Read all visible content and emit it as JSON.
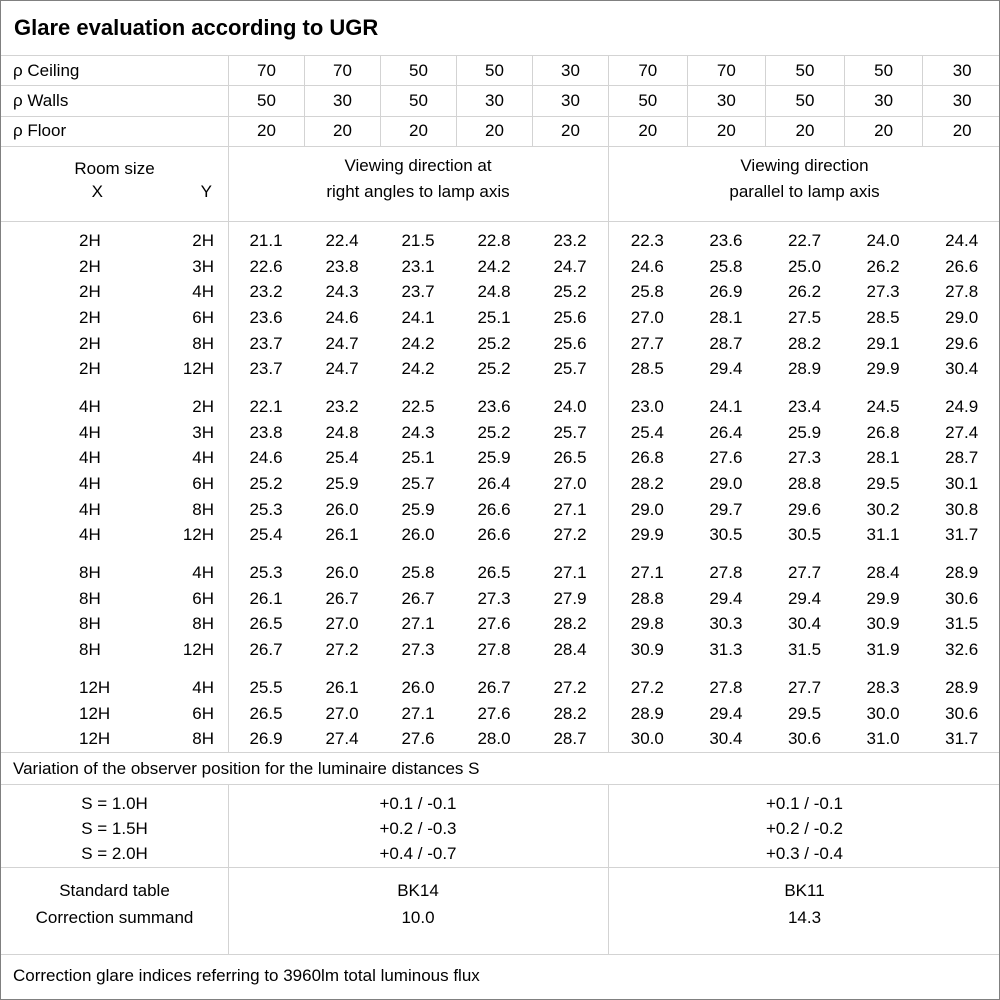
{
  "title": "Glare evaluation according to UGR",
  "reflectances": {
    "rows": [
      {
        "label": "ρ Ceiling",
        "values": [
          "70",
          "70",
          "50",
          "50",
          "30",
          "70",
          "70",
          "50",
          "50",
          "30"
        ]
      },
      {
        "label": "ρ Walls",
        "values": [
          "50",
          "30",
          "50",
          "30",
          "30",
          "50",
          "30",
          "50",
          "30",
          "30"
        ]
      },
      {
        "label": "ρ Floor",
        "values": [
          "20",
          "20",
          "20",
          "20",
          "20",
          "20",
          "20",
          "20",
          "20",
          "20"
        ]
      }
    ]
  },
  "header": {
    "room_size": "Room size",
    "x_label": "X",
    "y_label": "Y",
    "left_heading_line1": "Viewing direction at",
    "left_heading_line2": "right angles to lamp axis",
    "right_heading_line1": "Viewing direction",
    "right_heading_line2": "parallel to lamp axis"
  },
  "blocks": [
    {
      "rows": [
        {
          "x": "2H",
          "y": "2H",
          "left": [
            "21.1",
            "22.4",
            "21.5",
            "22.8",
            "23.2"
          ],
          "right": [
            "22.3",
            "23.6",
            "22.7",
            "24.0",
            "24.4"
          ]
        },
        {
          "x": "2H",
          "y": "3H",
          "left": [
            "22.6",
            "23.8",
            "23.1",
            "24.2",
            "24.7"
          ],
          "right": [
            "24.6",
            "25.8",
            "25.0",
            "26.2",
            "26.6"
          ]
        },
        {
          "x": "2H",
          "y": "4H",
          "left": [
            "23.2",
            "24.3",
            "23.7",
            "24.8",
            "25.2"
          ],
          "right": [
            "25.8",
            "26.9",
            "26.2",
            "27.3",
            "27.8"
          ]
        },
        {
          "x": "2H",
          "y": "6H",
          "left": [
            "23.6",
            "24.6",
            "24.1",
            "25.1",
            "25.6"
          ],
          "right": [
            "27.0",
            "28.1",
            "27.5",
            "28.5",
            "29.0"
          ]
        },
        {
          "x": "2H",
          "y": "8H",
          "left": [
            "23.7",
            "24.7",
            "24.2",
            "25.2",
            "25.6"
          ],
          "right": [
            "27.7",
            "28.7",
            "28.2",
            "29.1",
            "29.6"
          ]
        },
        {
          "x": "2H",
          "y": "12H",
          "left": [
            "23.7",
            "24.7",
            "24.2",
            "25.2",
            "25.7"
          ],
          "right": [
            "28.5",
            "29.4",
            "28.9",
            "29.9",
            "30.4"
          ]
        }
      ]
    },
    {
      "rows": [
        {
          "x": "4H",
          "y": "2H",
          "left": [
            "22.1",
            "23.2",
            "22.5",
            "23.6",
            "24.0"
          ],
          "right": [
            "23.0",
            "24.1",
            "23.4",
            "24.5",
            "24.9"
          ]
        },
        {
          "x": "4H",
          "y": "3H",
          "left": [
            "23.8",
            "24.8",
            "24.3",
            "25.2",
            "25.7"
          ],
          "right": [
            "25.4",
            "26.4",
            "25.9",
            "26.8",
            "27.4"
          ]
        },
        {
          "x": "4H",
          "y": "4H",
          "left": [
            "24.6",
            "25.4",
            "25.1",
            "25.9",
            "26.5"
          ],
          "right": [
            "26.8",
            "27.6",
            "27.3",
            "28.1",
            "28.7"
          ]
        },
        {
          "x": "4H",
          "y": "6H",
          "left": [
            "25.2",
            "25.9",
            "25.7",
            "26.4",
            "27.0"
          ],
          "right": [
            "28.2",
            "29.0",
            "28.8",
            "29.5",
            "30.1"
          ]
        },
        {
          "x": "4H",
          "y": "8H",
          "left": [
            "25.3",
            "26.0",
            "25.9",
            "26.6",
            "27.1"
          ],
          "right": [
            "29.0",
            "29.7",
            "29.6",
            "30.2",
            "30.8"
          ]
        },
        {
          "x": "4H",
          "y": "12H",
          "left": [
            "25.4",
            "26.1",
            "26.0",
            "26.6",
            "27.2"
          ],
          "right": [
            "29.9",
            "30.5",
            "30.5",
            "31.1",
            "31.7"
          ]
        }
      ]
    },
    {
      "rows": [
        {
          "x": "8H",
          "y": "4H",
          "left": [
            "25.3",
            "26.0",
            "25.8",
            "26.5",
            "27.1"
          ],
          "right": [
            "27.1",
            "27.8",
            "27.7",
            "28.4",
            "28.9"
          ]
        },
        {
          "x": "8H",
          "y": "6H",
          "left": [
            "26.1",
            "26.7",
            "26.7",
            "27.3",
            "27.9"
          ],
          "right": [
            "28.8",
            "29.4",
            "29.4",
            "29.9",
            "30.6"
          ]
        },
        {
          "x": "8H",
          "y": "8H",
          "left": [
            "26.5",
            "27.0",
            "27.1",
            "27.6",
            "28.2"
          ],
          "right": [
            "29.8",
            "30.3",
            "30.4",
            "30.9",
            "31.5"
          ]
        },
        {
          "x": "8H",
          "y": "12H",
          "left": [
            "26.7",
            "27.2",
            "27.3",
            "27.8",
            "28.4"
          ],
          "right": [
            "30.9",
            "31.3",
            "31.5",
            "31.9",
            "32.6"
          ]
        }
      ]
    },
    {
      "rows": [
        {
          "x": "12H",
          "y": "4H",
          "left": [
            "25.5",
            "26.1",
            "26.0",
            "26.7",
            "27.2"
          ],
          "right": [
            "27.2",
            "27.8",
            "27.7",
            "28.3",
            "28.9"
          ]
        },
        {
          "x": "12H",
          "y": "6H",
          "left": [
            "26.5",
            "27.0",
            "27.1",
            "27.6",
            "28.2"
          ],
          "right": [
            "28.9",
            "29.4",
            "29.5",
            "30.0",
            "30.6"
          ]
        },
        {
          "x": "12H",
          "y": "8H",
          "left": [
            "26.9",
            "27.4",
            "27.6",
            "28.0",
            "28.7"
          ],
          "right": [
            "30.0",
            "30.4",
            "30.6",
            "31.0",
            "31.7"
          ]
        }
      ]
    }
  ],
  "variation_note": "Variation of the observer position for the luminaire distances S",
  "s_table": {
    "labels": [
      "S = 1.0H",
      "S = 1.5H",
      "S = 2.0H"
    ],
    "left": [
      "+0.1 / -0.1",
      "+0.2 / -0.3",
      "+0.4 / -0.7"
    ],
    "right": [
      "+0.1 / -0.1",
      "+0.2 / -0.2",
      "+0.3 / -0.4"
    ]
  },
  "summary": {
    "labels": [
      "Standard table",
      "Correction summand"
    ],
    "left": [
      "BK14",
      "10.0"
    ],
    "right": [
      "BK11",
      "14.3"
    ]
  },
  "footer": "Correction glare indices referring to 3960lm total luminous flux",
  "colors": {
    "gridline": "#d3d3d3",
    "border": "#808080",
    "text": "#000000",
    "background": "#ffffff"
  }
}
